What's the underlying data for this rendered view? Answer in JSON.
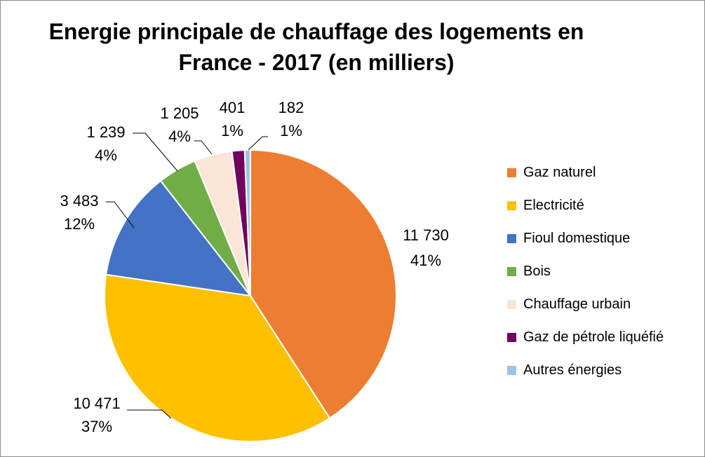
{
  "chart_data": {
    "type": "pie",
    "title_lines": [
      "Energie principale de chauffage des logements en",
      "France - 2017 (en milliers)"
    ],
    "series": [
      {
        "name": "Gaz naturel",
        "value": 11730,
        "value_label": "11 730",
        "percent_label": "41%",
        "color": "#ED7D31"
      },
      {
        "name": "Electricité",
        "value": 10471,
        "value_label": "10 471",
        "percent_label": "37%",
        "color": "#FFC000"
      },
      {
        "name": "Fioul domestique",
        "value": 3483,
        "value_label": "3 483",
        "percent_label": "12%",
        "color": "#4472C4"
      },
      {
        "name": "Bois",
        "value": 1239,
        "value_label": "1 239",
        "percent_label": "4%",
        "color": "#70AD47"
      },
      {
        "name": "Chauffage urbain",
        "value": 1205,
        "value_label": "1 205",
        "percent_label": "4%",
        "color": "#FBE5D6"
      },
      {
        "name": "Gaz de pétrole liquéfié",
        "value": 401,
        "value_label": "401",
        "percent_label": "1%",
        "color": "#70035E"
      },
      {
        "name": "Autres énergies",
        "value": 182,
        "value_label": "182",
        "percent_label": "1%",
        "color": "#9DC3E6"
      }
    ],
    "legend_position": "right"
  }
}
